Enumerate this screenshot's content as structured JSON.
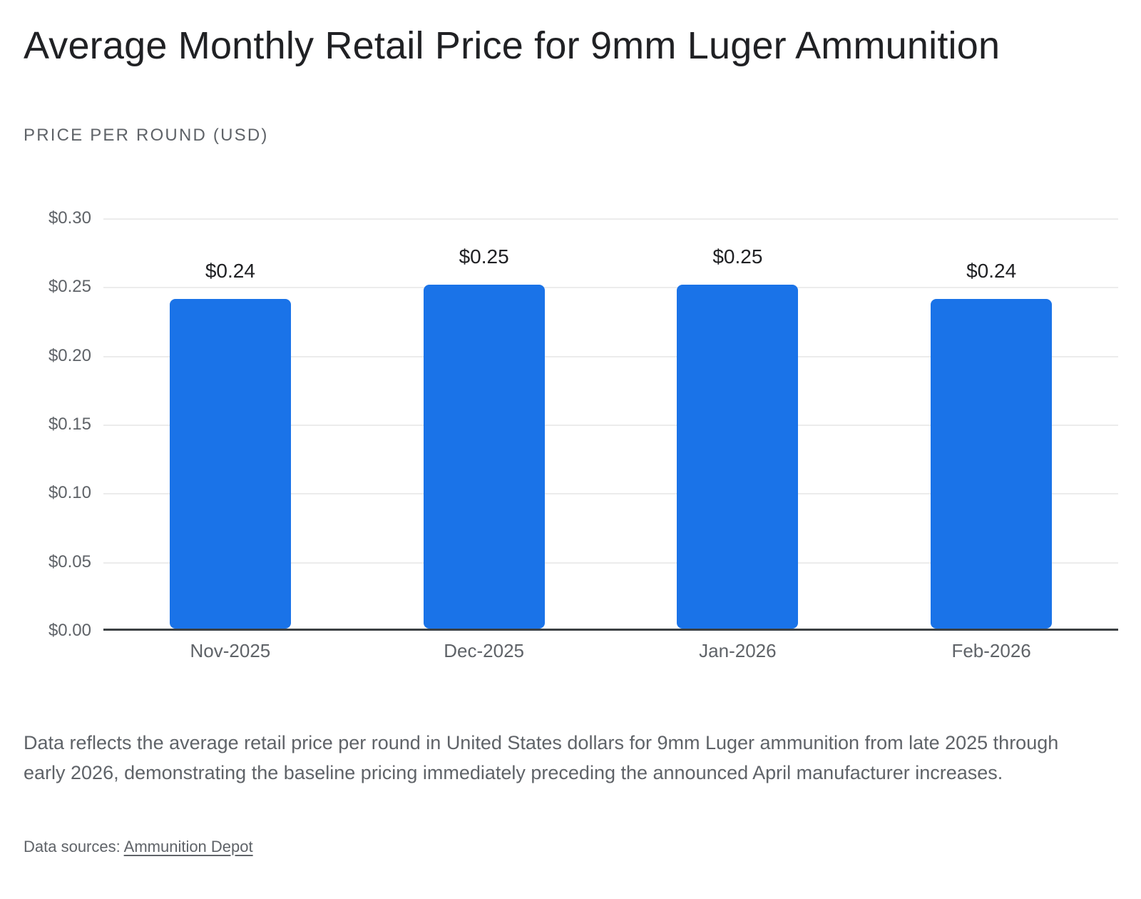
{
  "page": {
    "title": "Average Monthly Retail Price for 9mm Luger Ammunition",
    "axis_title": "PRICE PER ROUND (USD)",
    "footnote": "Data reflects the average retail price per round in United States dollars for 9mm Luger ammunition from late 2025 through early 2026, demonstrating the baseline pricing immediately preceding the announced April manufacturer increases.",
    "sources_label": "Data sources: ",
    "source_link": "Ammunition Depot"
  },
  "colors": {
    "title_text": "#202124",
    "muted_text": "#5f6368",
    "gridline": "#ececec",
    "axis_line": "#3c4043",
    "bar": "#1a73e8"
  },
  "chart_data": {
    "type": "bar",
    "title": "Average Monthly Retail Price for 9mm Luger Ammunition",
    "xlabel": "",
    "ylabel": "PRICE PER ROUND (USD)",
    "categories": [
      "Nov-2025",
      "Dec-2025",
      "Jan-2026",
      "Feb-2026"
    ],
    "values": [
      0.24,
      0.25,
      0.25,
      0.24
    ],
    "value_labels": [
      "$0.24",
      "$0.25",
      "$0.25",
      "$0.24"
    ],
    "ylim": [
      0,
      0.3
    ],
    "y_ticks": [
      {
        "value": 0.3,
        "label": "$0.30"
      },
      {
        "value": 0.25,
        "label": "$0.25"
      },
      {
        "value": 0.2,
        "label": "$0.20"
      },
      {
        "value": 0.15,
        "label": "$0.15"
      },
      {
        "value": 0.1,
        "label": "$0.10"
      },
      {
        "value": 0.05,
        "label": "$0.05"
      },
      {
        "value": 0.0,
        "label": "$0.00"
      }
    ],
    "grid": true,
    "legend": false,
    "bar_color": "#1a73e8"
  }
}
